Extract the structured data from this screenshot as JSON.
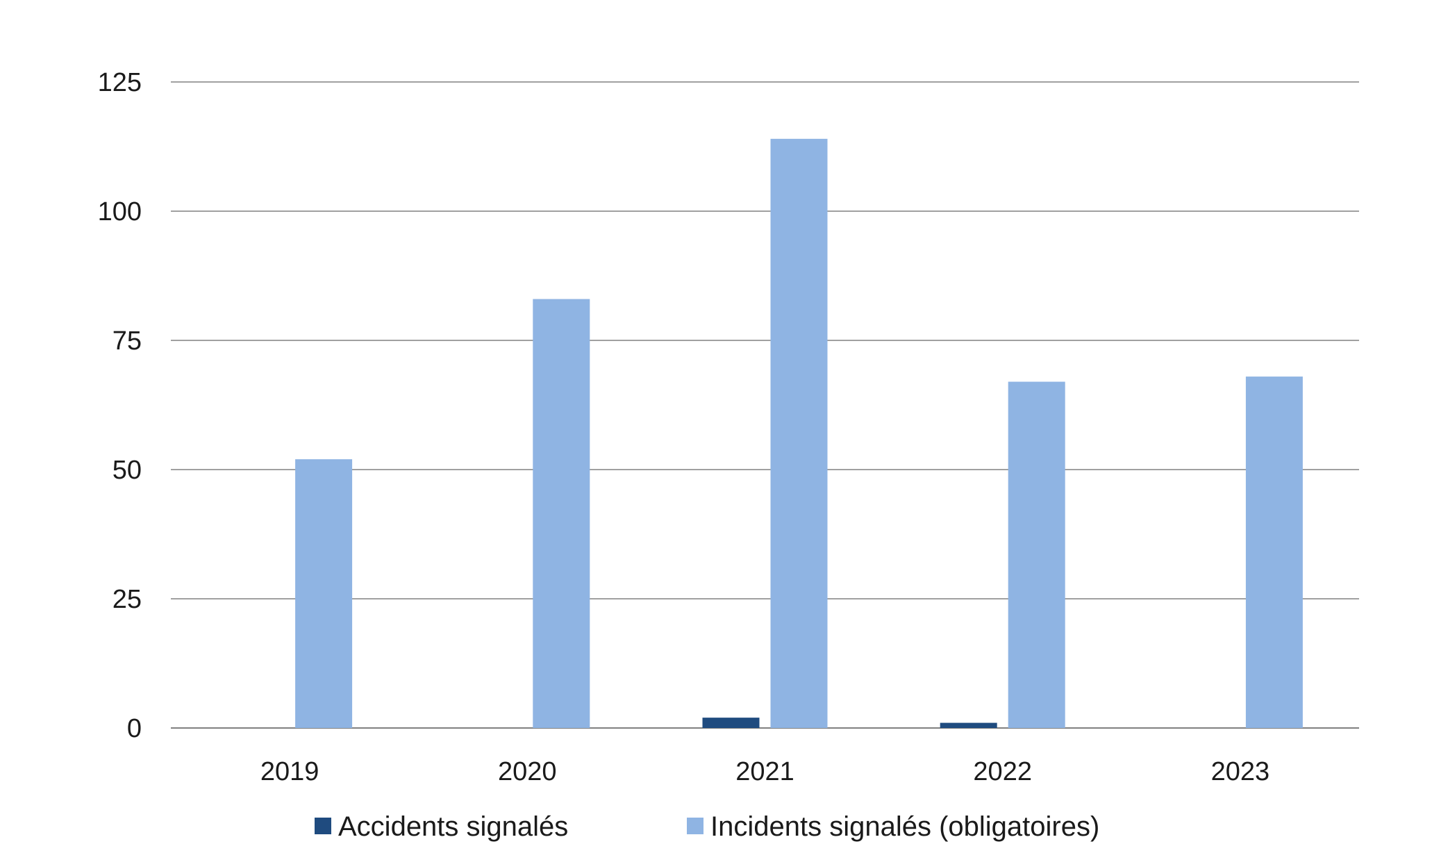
{
  "chart_data": {
    "type": "bar",
    "title": "",
    "xlabel": "",
    "ylabel": "",
    "categories": [
      "2019",
      "2020",
      "2021",
      "2022",
      "2023"
    ],
    "series": [
      {
        "name": "Accidents signalés",
        "color": "#1f4b7f",
        "values": [
          0,
          0,
          2,
          1,
          0
        ]
      },
      {
        "name": "Incidents signalés (obligatoires)",
        "color": "#8fb4e3",
        "values": [
          52,
          83,
          114,
          67,
          68
        ]
      }
    ],
    "ylim": [
      0,
      125
    ],
    "yticks": [
      0,
      25,
      50,
      75,
      100,
      125
    ],
    "grid": true,
    "legend": "bottom",
    "colors": {
      "gridline": "#808080",
      "axis": "#808080",
      "text": "#1a1a1a"
    }
  }
}
